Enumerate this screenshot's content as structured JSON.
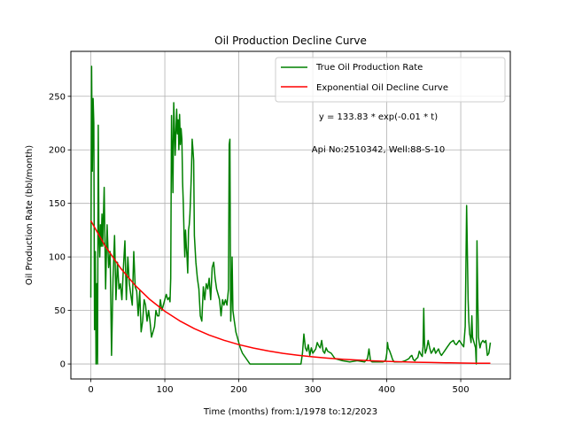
{
  "colors": {
    "series_0": "#008000",
    "series_1": "#ff0000",
    "grid": "#b0b0b0",
    "axes": "#000000",
    "background": "#ffffff"
  },
  "chart_data": {
    "type": "line",
    "title": "Oil Production Decline Curve",
    "xlabel": "Time (months) from:1/1978 to:12/2023",
    "ylabel": "Oil Production Rate (bbl/month)",
    "xlim": [
      -27,
      567
    ],
    "ylim": [
      -14,
      292
    ],
    "xticks": [
      0,
      100,
      200,
      300,
      400,
      500
    ],
    "yticks": [
      0,
      50,
      100,
      150,
      200,
      250
    ],
    "grid": true,
    "legend_position": "top-right",
    "legend": [
      "True Oil Production Rate",
      "Exponential Oil Decline Curve"
    ],
    "annotations": [
      "y = 133.83 * exp(-0.01 * t)",
      "Api No:2510342, Well:88-S-10"
    ],
    "series": [
      {
        "name": "True Oil Production Rate",
        "color": "#008000",
        "x": [
          0,
          1,
          2,
          3,
          4,
          5,
          6,
          7,
          8,
          9,
          10,
          11,
          12,
          13,
          14,
          15,
          16,
          18,
          20,
          22,
          24,
          26,
          28,
          30,
          32,
          34,
          36,
          38,
          40,
          42,
          44,
          46,
          48,
          50,
          52,
          54,
          56,
          58,
          60,
          62,
          64,
          66,
          68,
          70,
          72,
          74,
          76,
          78,
          80,
          82,
          84,
          86,
          88,
          90,
          92,
          94,
          96,
          98,
          100,
          102,
          104,
          106,
          107,
          108,
          109,
          110,
          111,
          112,
          113,
          114,
          115,
          116,
          117,
          118,
          119,
          120,
          121,
          122,
          123,
          124,
          125,
          126,
          127,
          128,
          129,
          130,
          131,
          132,
          133,
          134,
          135,
          136,
          137,
          138,
          139,
          140,
          142,
          144,
          146,
          148,
          150,
          152,
          154,
          156,
          158,
          160,
          162,
          164,
          166,
          168,
          170,
          172,
          174,
          176,
          178,
          180,
          182,
          184,
          186,
          187,
          188,
          189,
          190,
          191,
          192,
          193,
          194,
          195,
          196,
          198,
          200,
          202,
          205,
          210,
          215,
          220,
          225,
          230,
          240,
          250,
          260,
          270,
          275,
          278,
          280,
          282,
          284,
          286,
          288,
          290,
          292,
          294,
          296,
          298,
          300,
          302,
          304,
          306,
          308,
          310,
          312,
          314,
          316,
          318,
          320,
          325,
          330,
          340,
          350,
          360,
          370,
          374,
          376,
          378,
          380,
          385,
          390,
          395,
          398,
          399,
          400,
          401,
          402,
          404,
          406,
          408,
          410,
          415,
          420,
          425,
          430,
          432,
          434,
          436,
          438,
          440,
          442,
          444,
          446,
          447,
          448,
          449,
          450,
          451,
          452,
          454,
          456,
          458,
          460,
          462,
          464,
          466,
          468,
          470,
          472,
          474,
          476,
          478,
          480,
          482,
          484,
          486,
          488,
          490,
          492,
          494,
          496,
          498,
          500,
          502,
          504,
          506,
          508,
          510,
          511,
          512,
          513,
          514,
          515,
          516,
          518,
          520,
          521,
          522,
          523,
          524,
          525,
          526,
          527,
          528,
          530,
          532,
          534,
          536,
          538,
          540
        ],
        "y": [
          62,
          278,
          180,
          248,
          225,
          32,
          105,
          0,
          75,
          0,
          223,
          120,
          100,
          130,
          110,
          140,
          110,
          165,
          70,
          130,
          90,
          105,
          8,
          80,
          120,
          60,
          95,
          70,
          75,
          60,
          90,
          115,
          60,
          100,
          75,
          65,
          55,
          105,
          72,
          68,
          45,
          68,
          30,
          40,
          60,
          55,
          40,
          50,
          40,
          25,
          30,
          35,
          50,
          45,
          45,
          60,
          50,
          55,
          60,
          65,
          60,
          62,
          58,
          80,
          232,
          200,
          160,
          244,
          220,
          195,
          218,
          238,
          215,
          228,
          200,
          233,
          205,
          220,
          210,
          170,
          150,
          120,
          100,
          125,
          110,
          100,
          85,
          125,
          130,
          140,
          160,
          180,
          210,
          200,
          190,
          120,
          95,
          80,
          70,
          45,
          40,
          72,
          60,
          75,
          70,
          80,
          60,
          90,
          95,
          80,
          70,
          65,
          60,
          45,
          60,
          55,
          60,
          55,
          70,
          205,
          210,
          40,
          60,
          100,
          50,
          45,
          40,
          35,
          30,
          25,
          20,
          15,
          10,
          5,
          0,
          0,
          0,
          0,
          0,
          0,
          0,
          0,
          0,
          0,
          0,
          0,
          0,
          10,
          28,
          15,
          12,
          18,
          8,
          15,
          10,
          12,
          14,
          20,
          17,
          15,
          22,
          12,
          10,
          15,
          12,
          10,
          5,
          3,
          2,
          3,
          2,
          5,
          14,
          3,
          2,
          2,
          2,
          2,
          3,
          5,
          10,
          20,
          15,
          12,
          8,
          4,
          2,
          2,
          2,
          3,
          5,
          7,
          8,
          4,
          3,
          5,
          6,
          12,
          9,
          8,
          7,
          16,
          52,
          20,
          10,
          14,
          22,
          15,
          10,
          12,
          15,
          10,
          12,
          14,
          10,
          8,
          10,
          12,
          14,
          16,
          18,
          20,
          21,
          22,
          19,
          18,
          20,
          22,
          20,
          18,
          16,
          35,
          148,
          60,
          40,
          28,
          25,
          20,
          45,
          25,
          20,
          15,
          0,
          115,
          60,
          25,
          20,
          15,
          18,
          20,
          22,
          20,
          22,
          8,
          10,
          20
        ]
      },
      {
        "name": "Exponential Oil Decline Curve",
        "color": "#ff0000",
        "x": [
          0,
          20,
          40,
          60,
          80,
          100,
          120,
          140,
          160,
          180,
          200,
          220,
          240,
          260,
          280,
          300,
          320,
          340,
          360,
          380,
          400,
          420,
          440,
          460,
          480,
          500,
          520,
          540
        ],
        "y": [
          133.83,
          109.57,
          89.71,
          73.45,
          60.13,
          49.23,
          40.31,
          33.0,
          27.02,
          22.12,
          18.11,
          14.83,
          12.14,
          9.94,
          8.14,
          6.66,
          5.45,
          4.47,
          3.66,
          2.99,
          2.45,
          2.01,
          1.64,
          1.35,
          1.1,
          0.9,
          0.74,
          0.61
        ]
      }
    ]
  }
}
